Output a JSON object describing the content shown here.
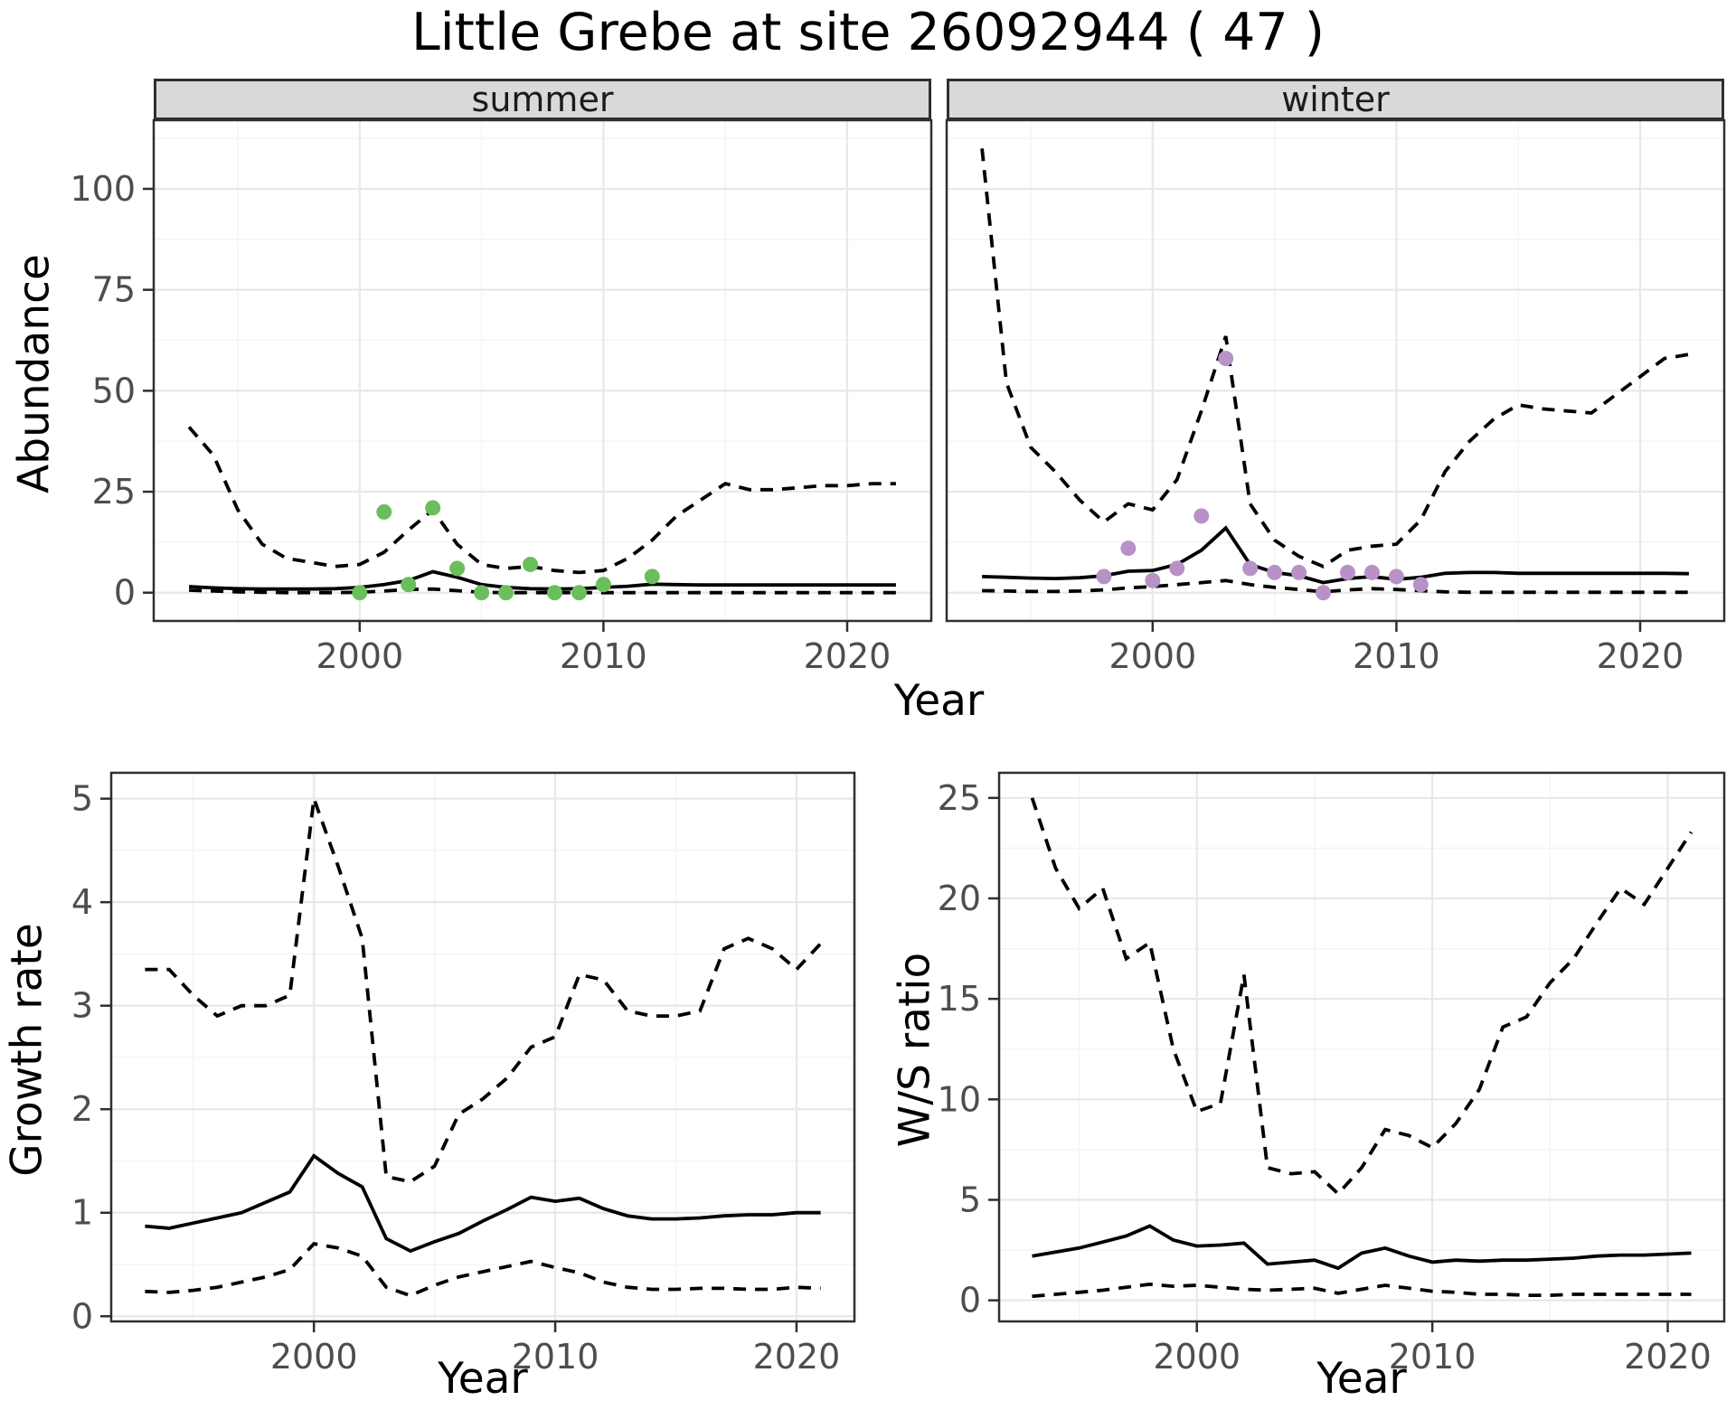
{
  "title": "Little Grebe at site 26092944 ( 47 )",
  "facets": [
    {
      "label": "summer"
    },
    {
      "label": "winter"
    }
  ],
  "axis_titles": {
    "abundance": "Abundance",
    "year": "Year",
    "growth": "Growth rate",
    "ws": "W/S ratio"
  },
  "colors": {
    "summer_points": "#6bbe5c",
    "winter_points": "#b892c6",
    "line": "#000000",
    "grid_major": "#e8e8e8",
    "grid_minor": "#f3f3f3",
    "strip_fill": "#d9d9d9",
    "panel_border": "#2f2f2f",
    "tick_label": "#4d4d4d"
  },
  "chart_data": [
    {
      "type": "line",
      "panel": "abundance-summer",
      "facet": "summer",
      "ylabel": "Abundance",
      "xlabel": "Year",
      "x": [
        1993,
        1994,
        1995,
        1996,
        1997,
        1998,
        1999,
        2000,
        2001,
        2002,
        2003,
        2004,
        2005,
        2006,
        2007,
        2008,
        2009,
        2010,
        2011,
        2012,
        2013,
        2014,
        2015,
        2016,
        2017,
        2018,
        2019,
        2020,
        2021,
        2022
      ],
      "series": [
        {
          "name": "upper95",
          "style": "dashed",
          "values": [
            41,
            34,
            20.5,
            12,
            8.5,
            7.5,
            6.5,
            7,
            10,
            15.5,
            20.5,
            12,
            7,
            6,
            6.5,
            5.5,
            5,
            5.5,
            8.5,
            13,
            19,
            23,
            27,
            25.5,
            25.5,
            26,
            26.5,
            26.5,
            27,
            27
          ]
        },
        {
          "name": "lower95",
          "style": "dashed",
          "values": [
            0.6,
            0.4,
            0.2,
            0.1,
            0,
            0,
            0,
            0.1,
            0.4,
            0.8,
            0.9,
            0.5,
            0.1,
            0,
            0,
            0,
            0,
            0,
            0,
            0,
            0,
            0,
            0,
            0,
            0,
            0,
            0,
            0,
            0,
            0
          ]
        },
        {
          "name": "median",
          "style": "solid",
          "values": [
            1.5,
            1.2,
            1,
            0.9,
            0.9,
            0.9,
            1,
            1.3,
            2,
            3,
            5.2,
            3.8,
            2,
            1.3,
            1,
            0.9,
            1,
            1.3,
            1.6,
            2.1,
            2,
            1.9,
            1.9,
            1.9,
            1.9,
            1.9,
            1.9,
            1.9,
            1.9,
            1.9
          ]
        }
      ],
      "points": {
        "name": "observed-counts",
        "color": "#6bbe5c",
        "data": [
          [
            2000,
            0
          ],
          [
            2001,
            20
          ],
          [
            2002,
            2
          ],
          [
            2003,
            21
          ],
          [
            2004,
            6
          ],
          [
            2005,
            0
          ],
          [
            2006,
            0
          ],
          [
            2007,
            7
          ],
          [
            2008,
            0
          ],
          [
            2009,
            0
          ],
          [
            2010,
            2
          ],
          [
            2012,
            4
          ]
        ]
      },
      "xlim": [
        1991.55,
        2023.45
      ],
      "ylim": [
        -7,
        117
      ],
      "xticks": [
        2000,
        2010,
        2020
      ],
      "yticks": [
        0,
        25,
        50,
        75,
        100
      ],
      "xminor": [
        1995,
        2005,
        2015
      ],
      "yminor": [
        12.5,
        37.5,
        62.5,
        87.5,
        112.5
      ],
      "grid": true,
      "legend": "none"
    },
    {
      "type": "line",
      "panel": "abundance-winter",
      "facet": "winter",
      "ylabel": "Abundance",
      "xlabel": "Year",
      "x": [
        1993,
        1994,
        1995,
        1996,
        1997,
        1998,
        1999,
        2000,
        2001,
        2002,
        2003,
        2004,
        2005,
        2006,
        2007,
        2008,
        2009,
        2010,
        2011,
        2012,
        2013,
        2014,
        2015,
        2016,
        2017,
        2018,
        2019,
        2020,
        2021,
        2022
      ],
      "series": [
        {
          "name": "upper95",
          "style": "dashed",
          "values": [
            110,
            52,
            36,
            30,
            23,
            17.5,
            22,
            20.5,
            28,
            45,
            63.5,
            22,
            13,
            9,
            6.5,
            10.5,
            11.5,
            12,
            18,
            30,
            37.5,
            43,
            46.5,
            45.5,
            45,
            44.5,
            49,
            53.5,
            58,
            59
          ]
        },
        {
          "name": "lower95",
          "style": "dashed",
          "values": [
            0.5,
            0.4,
            0.3,
            0.3,
            0.4,
            0.7,
            1.2,
            1.5,
            2,
            2.5,
            3,
            2,
            1.3,
            0.8,
            0.2,
            0.7,
            1,
            0.8,
            0.5,
            0.2,
            0.1,
            0.1,
            0.1,
            0.1,
            0.1,
            0.1,
            0.1,
            0.1,
            0.1,
            0.1
          ]
        },
        {
          "name": "median",
          "style": "solid",
          "values": [
            4,
            3.8,
            3.6,
            3.5,
            3.7,
            4.2,
            5.3,
            5.5,
            7,
            10.5,
            16,
            7,
            5,
            4.2,
            2.5,
            3.5,
            4,
            3.3,
            3.8,
            4.8,
            5,
            5,
            4.8,
            4.8,
            4.8,
            4.8,
            4.8,
            4.8,
            4.8,
            4.7
          ]
        }
      ],
      "points": {
        "name": "observed-counts",
        "color": "#b892c6",
        "data": [
          [
            1998,
            4
          ],
          [
            1999,
            11
          ],
          [
            2000,
            3
          ],
          [
            2001,
            6
          ],
          [
            2002,
            19
          ],
          [
            2003,
            58
          ],
          [
            2004,
            6
          ],
          [
            2005,
            5
          ],
          [
            2006,
            5
          ],
          [
            2007,
            0
          ],
          [
            2008,
            5
          ],
          [
            2009,
            5
          ],
          [
            2010,
            4
          ],
          [
            2011,
            2
          ]
        ]
      },
      "xlim": [
        1991.55,
        2023.45
      ],
      "ylim": [
        -7,
        117
      ],
      "xticks": [
        2000,
        2010,
        2020
      ],
      "yticks": [
        0,
        25,
        50,
        75,
        100
      ],
      "xminor": [
        1995,
        2005,
        2015
      ],
      "yminor": [
        12.5,
        37.5,
        62.5,
        87.5,
        112.5
      ],
      "grid": true,
      "legend": "none"
    },
    {
      "type": "line",
      "panel": "growth-rate",
      "facet": null,
      "ylabel": "Growth rate",
      "xlabel": "Year",
      "x": [
        1993,
        1994,
        1995,
        1996,
        1997,
        1998,
        1999,
        2000,
        2001,
        2002,
        2003,
        2004,
        2005,
        2006,
        2007,
        2008,
        2009,
        2010,
        2011,
        2012,
        2013,
        2014,
        2015,
        2016,
        2017,
        2018,
        2019,
        2020,
        2021
      ],
      "series": [
        {
          "name": "upper95",
          "style": "dashed",
          "values": [
            3.35,
            3.35,
            3.1,
            2.9,
            3,
            3,
            3.1,
            5,
            4.35,
            3.65,
            1.35,
            1.3,
            1.45,
            1.95,
            2.1,
            2.3,
            2.6,
            2.7,
            3.3,
            3.25,
            2.95,
            2.9,
            2.9,
            2.95,
            3.55,
            3.65,
            3.55,
            3.35,
            3.6
          ]
        },
        {
          "name": "lower95",
          "style": "dashed",
          "values": [
            0.24,
            0.23,
            0.25,
            0.28,
            0.33,
            0.38,
            0.45,
            0.7,
            0.66,
            0.58,
            0.28,
            0.2,
            0.3,
            0.38,
            0.43,
            0.48,
            0.53,
            0.47,
            0.42,
            0.33,
            0.28,
            0.26,
            0.26,
            0.27,
            0.27,
            0.26,
            0.26,
            0.28,
            0.27
          ]
        },
        {
          "name": "median",
          "style": "solid",
          "values": [
            0.87,
            0.85,
            0.9,
            0.95,
            1,
            1.1,
            1.2,
            1.55,
            1.38,
            1.25,
            0.75,
            0.63,
            0.72,
            0.8,
            0.92,
            1.03,
            1.15,
            1.11,
            1.14,
            1.04,
            0.97,
            0.94,
            0.94,
            0.95,
            0.97,
            0.98,
            0.98,
            1,
            1
          ]
        }
      ],
      "points": null,
      "xlim": [
        1991.6,
        2022.4
      ],
      "ylim": [
        -0.05,
        5.25
      ],
      "xticks": [
        2000,
        2010,
        2020
      ],
      "yticks": [
        0,
        1,
        2,
        3,
        4,
        5
      ],
      "xminor": [
        1995,
        2005,
        2015
      ],
      "yminor": [
        0.5,
        1.5,
        2.5,
        3.5,
        4.5
      ],
      "grid": true,
      "legend": "none"
    },
    {
      "type": "line",
      "panel": "ws-ratio",
      "facet": null,
      "ylabel": "W/S ratio",
      "xlabel": "Year",
      "x": [
        1993,
        1994,
        1995,
        1996,
        1997,
        1998,
        1999,
        2000,
        2001,
        2002,
        2003,
        2004,
        2005,
        2006,
        2007,
        2008,
        2009,
        2010,
        2011,
        2012,
        2013,
        2014,
        2015,
        2016,
        2017,
        2018,
        2019,
        2020,
        2021
      ],
      "series": [
        {
          "name": "upper95",
          "style": "dashed",
          "values": [
            25,
            21.5,
            19.5,
            20.5,
            17,
            17.8,
            12.5,
            9.4,
            9.8,
            16.2,
            6.6,
            6.3,
            6.4,
            5.3,
            6.6,
            8.5,
            8.2,
            7.6,
            8.8,
            10.5,
            13.6,
            14.1,
            15.8,
            17,
            18.8,
            20.5,
            19.7,
            21.5,
            23.3
          ]
        },
        {
          "name": "lower95",
          "style": "dashed",
          "values": [
            0.2,
            0.3,
            0.4,
            0.5,
            0.65,
            0.8,
            0.7,
            0.75,
            0.65,
            0.55,
            0.5,
            0.55,
            0.6,
            0.35,
            0.55,
            0.75,
            0.6,
            0.45,
            0.4,
            0.3,
            0.3,
            0.25,
            0.25,
            0.3,
            0.3,
            0.3,
            0.3,
            0.3,
            0.3
          ]
        },
        {
          "name": "median",
          "style": "solid",
          "values": [
            2.2,
            2.4,
            2.6,
            2.9,
            3.2,
            3.7,
            3,
            2.7,
            2.75,
            2.85,
            1.8,
            1.9,
            2,
            1.6,
            2.35,
            2.6,
            2.2,
            1.9,
            2,
            1.95,
            2,
            2,
            2.05,
            2.1,
            2.2,
            2.25,
            2.25,
            2.3,
            2.35
          ]
        }
      ],
      "points": null,
      "xlim": [
        1991.6,
        2022.4
      ],
      "ylim": [
        -1.05,
        26.25
      ],
      "xticks": [
        2000,
        2010,
        2020
      ],
      "yticks": [
        0,
        5,
        10,
        15,
        20,
        25
      ],
      "xminor": [
        1995,
        2005,
        2015
      ],
      "yminor": [
        2.5,
        7.5,
        12.5,
        17.5,
        22.5
      ],
      "grid": true,
      "legend": "none"
    }
  ]
}
